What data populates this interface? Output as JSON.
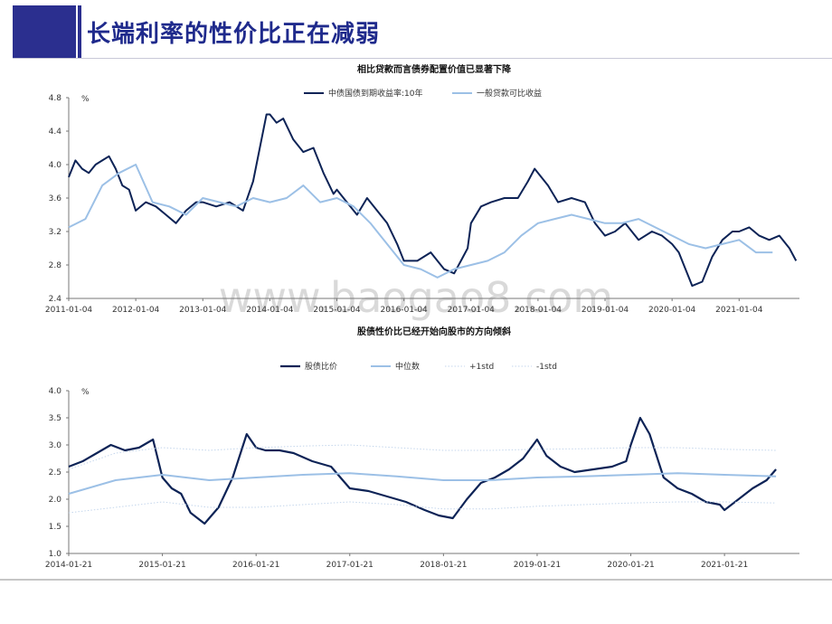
{
  "header": {
    "title": "长端利率的性价比正在减弱"
  },
  "watermark": "www.baogao8.com",
  "chart_data": [
    {
      "type": "line",
      "title": "相比贷款而言债券配置价值已显著下降",
      "ylabel": "%",
      "ylim": [
        2.4,
        4.8
      ],
      "yticks": [
        "2.4",
        "2.8",
        "3.2",
        "3.6",
        "4.0",
        "4.4",
        "4.8"
      ],
      "xticks": [
        "2011-01-04",
        "2012-01-04",
        "2013-01-04",
        "2014-01-04",
        "2015-01-04",
        "2016-01-04",
        "2017-01-04",
        "2018-01-04",
        "2019-01-04",
        "2020-01-04",
        "2021-01-04"
      ],
      "legend_position": "top-center",
      "grid": false,
      "series": [
        {
          "name": "中债国债到期收益率:10年",
          "color": "#0d2356",
          "x": [
            2011.0,
            2011.1,
            2011.2,
            2011.3,
            2011.4,
            2011.5,
            2011.6,
            2011.7,
            2011.8,
            2011.9,
            2012.0,
            2012.15,
            2012.3,
            2012.45,
            2012.6,
            2012.75,
            2012.9,
            2013.0,
            2013.2,
            2013.4,
            2013.6,
            2013.75,
            2013.85,
            2013.95,
            2014.0,
            2014.1,
            2014.2,
            2014.35,
            2014.5,
            2014.65,
            2014.8,
            2014.95,
            2015.0,
            2015.15,
            2015.3,
            2015.45,
            2015.6,
            2015.75,
            2015.9,
            2016.0,
            2016.2,
            2016.4,
            2016.6,
            2016.75,
            2016.85,
            2016.95,
            2017.0,
            2017.15,
            2017.3,
            2017.5,
            2017.7,
            2017.85,
            2017.95,
            2018.0,
            2018.15,
            2018.3,
            2018.5,
            2018.7,
            2018.85,
            2019.0,
            2019.15,
            2019.3,
            2019.5,
            2019.7,
            2019.85,
            2020.0,
            2020.1,
            2020.2,
            2020.3,
            2020.45,
            2020.6,
            2020.75,
            2020.9,
            2021.0,
            2021.15,
            2021.3,
            2021.45,
            2021.6,
            2021.75,
            2021.85
          ],
          "values": [
            3.85,
            4.05,
            3.95,
            3.9,
            4.0,
            4.05,
            4.1,
            3.95,
            3.75,
            3.7,
            3.45,
            3.55,
            3.5,
            3.4,
            3.3,
            3.45,
            3.55,
            3.55,
            3.5,
            3.55,
            3.45,
            3.8,
            4.2,
            4.6,
            4.6,
            4.5,
            4.55,
            4.3,
            4.15,
            4.2,
            3.9,
            3.65,
            3.7,
            3.55,
            3.4,
            3.6,
            3.45,
            3.3,
            3.05,
            2.85,
            2.85,
            2.95,
            2.75,
            2.7,
            2.85,
            3.0,
            3.3,
            3.5,
            3.55,
            3.6,
            3.6,
            3.8,
            3.95,
            3.9,
            3.75,
            3.55,
            3.6,
            3.55,
            3.3,
            3.15,
            3.2,
            3.3,
            3.1,
            3.2,
            3.15,
            3.05,
            2.95,
            2.75,
            2.55,
            2.6,
            2.9,
            3.1,
            3.2,
            3.2,
            3.25,
            3.15,
            3.1,
            3.15,
            3.0,
            2.85
          ]
        },
        {
          "name": "一般贷款可比收益",
          "color": "#9cc0e6",
          "x": [
            2011.0,
            2011.25,
            2011.5,
            2011.75,
            2012.0,
            2012.25,
            2012.5,
            2012.75,
            2013.0,
            2013.25,
            2013.5,
            2013.75,
            2014.0,
            2014.25,
            2014.5,
            2014.75,
            2015.0,
            2015.25,
            2015.5,
            2015.75,
            2016.0,
            2016.25,
            2016.5,
            2016.75,
            2017.0,
            2017.25,
            2017.5,
            2017.75,
            2018.0,
            2018.25,
            2018.5,
            2018.75,
            2019.0,
            2019.25,
            2019.5,
            2019.75,
            2020.0,
            2020.25,
            2020.5,
            2020.75,
            2021.0,
            2021.25,
            2021.5
          ],
          "values": [
            3.25,
            3.35,
            3.75,
            3.9,
            4.0,
            3.55,
            3.5,
            3.4,
            3.6,
            3.55,
            3.5,
            3.6,
            3.55,
            3.6,
            3.75,
            3.55,
            3.6,
            3.5,
            3.3,
            3.05,
            2.8,
            2.75,
            2.65,
            2.75,
            2.8,
            2.85,
            2.95,
            3.15,
            3.3,
            3.35,
            3.4,
            3.35,
            3.3,
            3.3,
            3.35,
            3.25,
            3.15,
            3.05,
            3.0,
            3.05,
            3.1,
            2.95,
            2.95
          ]
        }
      ]
    },
    {
      "type": "line",
      "title": "股债性价比已经开始向股市的方向倾斜",
      "ylabel": "%",
      "ylim": [
        1.0,
        4.0
      ],
      "yticks": [
        "1.0",
        "1.5",
        "2.0",
        "2.5",
        "3.0",
        "3.5",
        "4.0"
      ],
      "xticks": [
        "2014-01-21",
        "2015-01-21",
        "2016-01-21",
        "2017-01-21",
        "2018-01-21",
        "2019-01-21",
        "2020-01-21",
        "2021-01-21"
      ],
      "legend_position": "top-center",
      "grid": false,
      "series": [
        {
          "name": "股债比价",
          "color": "#0d2356",
          "x": [
            2014.0,
            2014.15,
            2014.3,
            2014.45,
            2014.6,
            2014.75,
            2014.9,
            2015.0,
            2015.1,
            2015.2,
            2015.3,
            2015.45,
            2015.6,
            2015.75,
            2015.9,
            2016.0,
            2016.1,
            2016.25,
            2016.4,
            2016.6,
            2016.8,
            2016.95,
            2017.0,
            2017.2,
            2017.4,
            2017.6,
            2017.8,
            2017.95,
            2018.1,
            2018.25,
            2018.4,
            2018.55,
            2018.7,
            2018.85,
            2019.0,
            2019.1,
            2019.25,
            2019.4,
            2019.6,
            2019.8,
            2019.95,
            2020.0,
            2020.1,
            2020.2,
            2020.35,
            2020.5,
            2020.65,
            2020.8,
            2020.95,
            2021.0,
            2021.15,
            2021.3,
            2021.45,
            2021.55
          ],
          "values": [
            2.6,
            2.7,
            2.85,
            3.0,
            2.9,
            2.95,
            3.1,
            2.4,
            2.2,
            2.1,
            1.75,
            1.55,
            1.85,
            2.4,
            3.2,
            2.95,
            2.9,
            2.9,
            2.85,
            2.7,
            2.6,
            2.3,
            2.2,
            2.15,
            2.05,
            1.95,
            1.8,
            1.7,
            1.65,
            2.0,
            2.3,
            2.4,
            2.55,
            2.75,
            3.1,
            2.8,
            2.6,
            2.5,
            2.55,
            2.6,
            2.7,
            3.0,
            3.5,
            3.2,
            2.4,
            2.2,
            2.1,
            1.95,
            1.9,
            1.8,
            2.0,
            2.2,
            2.35,
            2.55
          ]
        },
        {
          "name": "中位数",
          "color": "#9cc0e6",
          "x": [
            2014.0,
            2014.5,
            2015.0,
            2015.5,
            2016.0,
            2016.5,
            2017.0,
            2017.5,
            2018.0,
            2018.5,
            2019.0,
            2019.5,
            2020.0,
            2020.5,
            2021.0,
            2021.55
          ],
          "values": [
            2.1,
            2.35,
            2.45,
            2.35,
            2.4,
            2.45,
            2.48,
            2.42,
            2.35,
            2.35,
            2.4,
            2.42,
            2.45,
            2.48,
            2.45,
            2.42
          ]
        },
        {
          "name": "+1std",
          "color": "#c4d6ec",
          "x": [
            2014.0,
            2014.5,
            2015.0,
            2015.5,
            2016.0,
            2016.5,
            2017.0,
            2017.5,
            2018.0,
            2018.5,
            2019.0,
            2019.5,
            2020.0,
            2020.5,
            2021.0,
            2021.55
          ],
          "values": [
            2.55,
            2.85,
            2.95,
            2.9,
            2.95,
            2.98,
            3.0,
            2.95,
            2.9,
            2.9,
            2.92,
            2.93,
            2.95,
            2.95,
            2.92,
            2.9
          ]
        },
        {
          "name": "-1std",
          "color": "#c4d6ec",
          "x": [
            2014.0,
            2014.5,
            2015.0,
            2015.5,
            2016.0,
            2016.5,
            2017.0,
            2017.5,
            2018.0,
            2018.5,
            2019.0,
            2019.5,
            2020.0,
            2020.5,
            2021.0,
            2021.55
          ],
          "values": [
            1.75,
            1.85,
            1.95,
            1.85,
            1.85,
            1.9,
            1.95,
            1.9,
            1.82,
            1.82,
            1.87,
            1.9,
            1.93,
            1.95,
            1.95,
            1.93
          ]
        }
      ]
    }
  ]
}
